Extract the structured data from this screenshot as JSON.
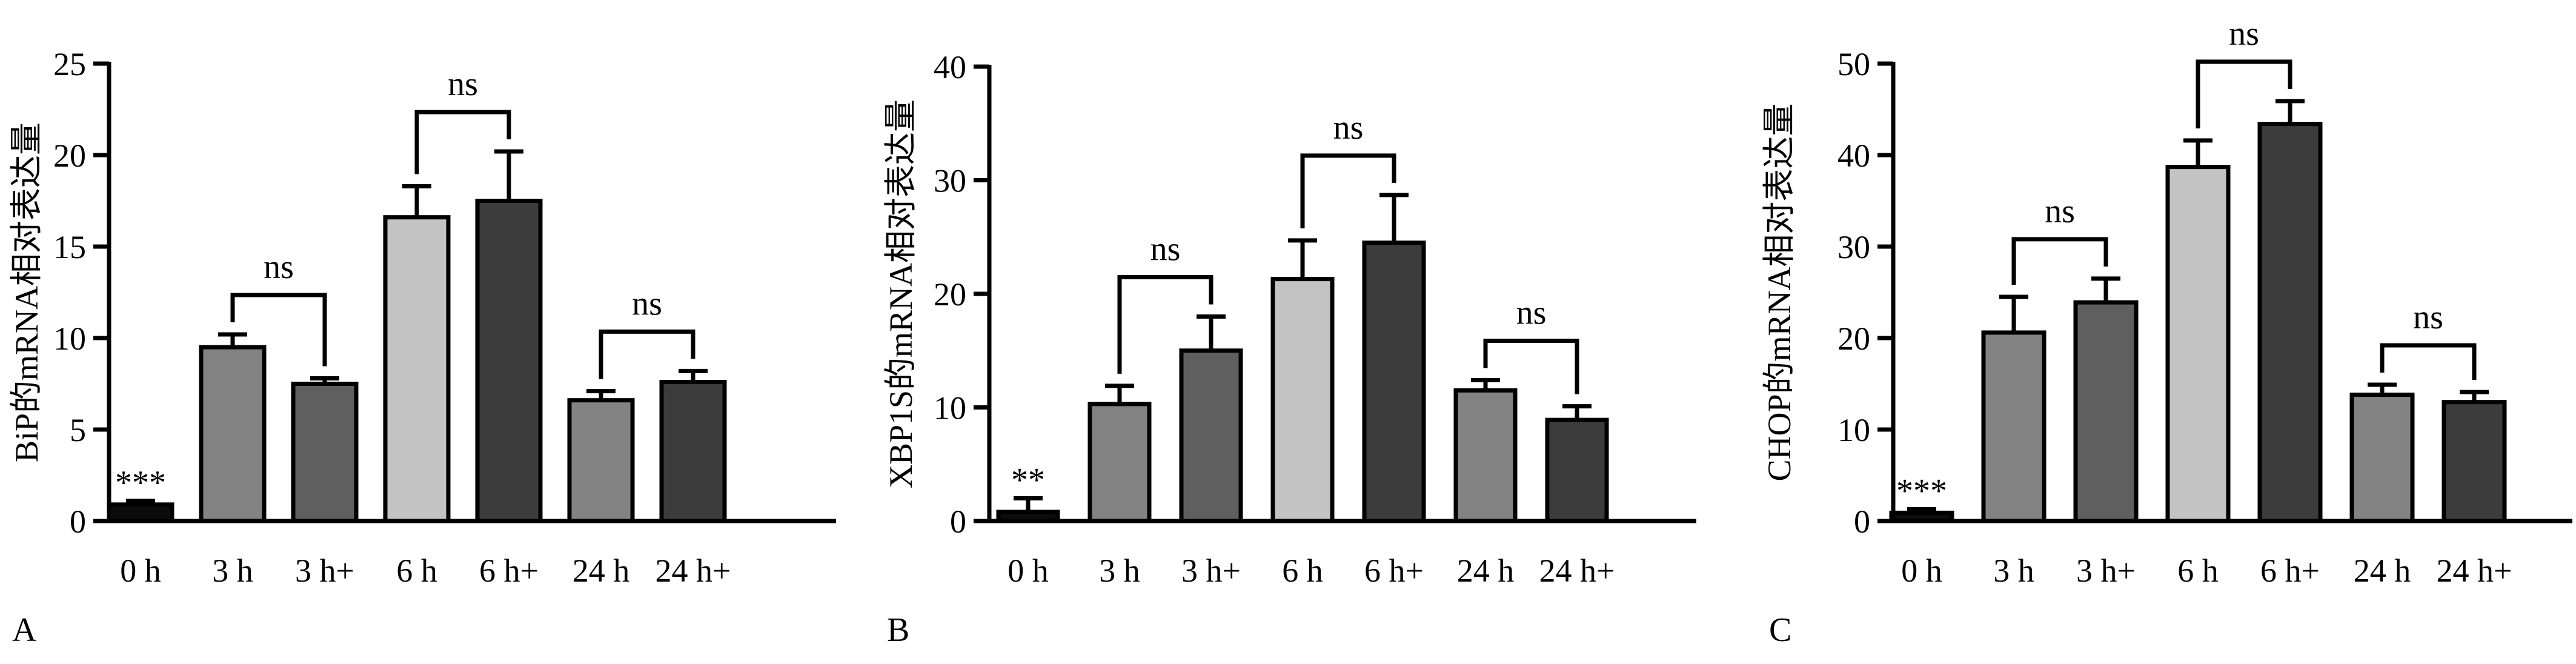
{
  "chart_data": [
    {
      "type": "bar",
      "panel_label": "A",
      "ylabel": "BiP的mRNA相对表达量",
      "xlabel": "",
      "ylim": [
        0,
        25
      ],
      "yticks": [
        0,
        5,
        10,
        15,
        20,
        25
      ],
      "ytick_labels": [
        "0",
        "5",
        "10",
        "15",
        "20",
        "25"
      ],
      "categories": [
        "0 h",
        "3 h",
        "3 h+",
        "6 h",
        "6 h+",
        "24 h",
        "24 h+"
      ],
      "values": [
        0.9,
        9.5,
        7.5,
        16.6,
        17.5,
        6.6,
        7.6
      ],
      "errors": [
        0.2,
        0.7,
        0.3,
        1.7,
        2.7,
        0.5,
        0.6
      ],
      "bar_colors": [
        "#0c0c0c",
        "#838383",
        "#5f5f5f",
        "#c3c3c3",
        "#3c3c3c",
        "#838383",
        "#3c3c3c"
      ],
      "bar_annotations": [
        {
          "bar": 0,
          "text": "***"
        }
      ],
      "comparisons": [
        {
          "from": 1,
          "to": 2,
          "label": "ns"
        },
        {
          "from": 3,
          "to": 4,
          "label": "ns"
        },
        {
          "from": 5,
          "to": 6,
          "label": "ns"
        }
      ],
      "grid": false
    },
    {
      "type": "bar",
      "panel_label": "B",
      "ylabel": "XBP1S的mRNA相对表达量",
      "xlabel": "",
      "ylim": [
        0,
        40
      ],
      "yticks": [
        0,
        10,
        20,
        30,
        40
      ],
      "ytick_labels": [
        "0",
        "10",
        "20",
        "30",
        "40"
      ],
      "categories": [
        "0 h",
        "3 h",
        "3 h+",
        "6 h",
        "6 h+",
        "24 h",
        "24 h+"
      ],
      "values": [
        0.8,
        10.3,
        15.0,
        21.3,
        24.5,
        11.5,
        8.9
      ],
      "errors": [
        1.2,
        1.6,
        3.0,
        3.4,
        4.2,
        0.9,
        1.2
      ],
      "bar_colors": [
        "#0c0c0c",
        "#838383",
        "#5f5f5f",
        "#c3c3c3",
        "#3c3c3c",
        "#838383",
        "#3c3c3c"
      ],
      "bar_annotations": [
        {
          "bar": 0,
          "text": "**"
        }
      ],
      "comparisons": [
        {
          "from": 1,
          "to": 2,
          "label": "ns"
        },
        {
          "from": 3,
          "to": 4,
          "label": "ns"
        },
        {
          "from": 5,
          "to": 6,
          "label": "ns"
        }
      ],
      "grid": false
    },
    {
      "type": "bar",
      "panel_label": "C",
      "ylabel": "CHOP的mRNA相对表达量",
      "xlabel": "",
      "ylim": [
        0,
        50
      ],
      "yticks": [
        0,
        10,
        20,
        30,
        40,
        50
      ],
      "ytick_labels": [
        "0",
        "10",
        "20",
        "30",
        "40",
        "50"
      ],
      "categories": [
        "0 h",
        "3 h",
        "3 h+",
        "6 h",
        "6 h+",
        "24 h",
        "24 h+"
      ],
      "values": [
        0.9,
        20.6,
        23.9,
        38.7,
        43.4,
        13.8,
        13.0
      ],
      "errors": [
        0.4,
        3.9,
        2.6,
        2.9,
        2.5,
        1.1,
        1.1
      ],
      "bar_colors": [
        "#0c0c0c",
        "#838383",
        "#5f5f5f",
        "#c3c3c3",
        "#3c3c3c",
        "#838383",
        "#3c3c3c"
      ],
      "bar_annotations": [
        {
          "bar": 0,
          "text": "***"
        }
      ],
      "comparisons": [
        {
          "from": 1,
          "to": 2,
          "label": "ns"
        },
        {
          "from": 3,
          "to": 4,
          "label": "ns"
        },
        {
          "from": 5,
          "to": 6,
          "label": "ns"
        }
      ],
      "grid": false
    }
  ]
}
